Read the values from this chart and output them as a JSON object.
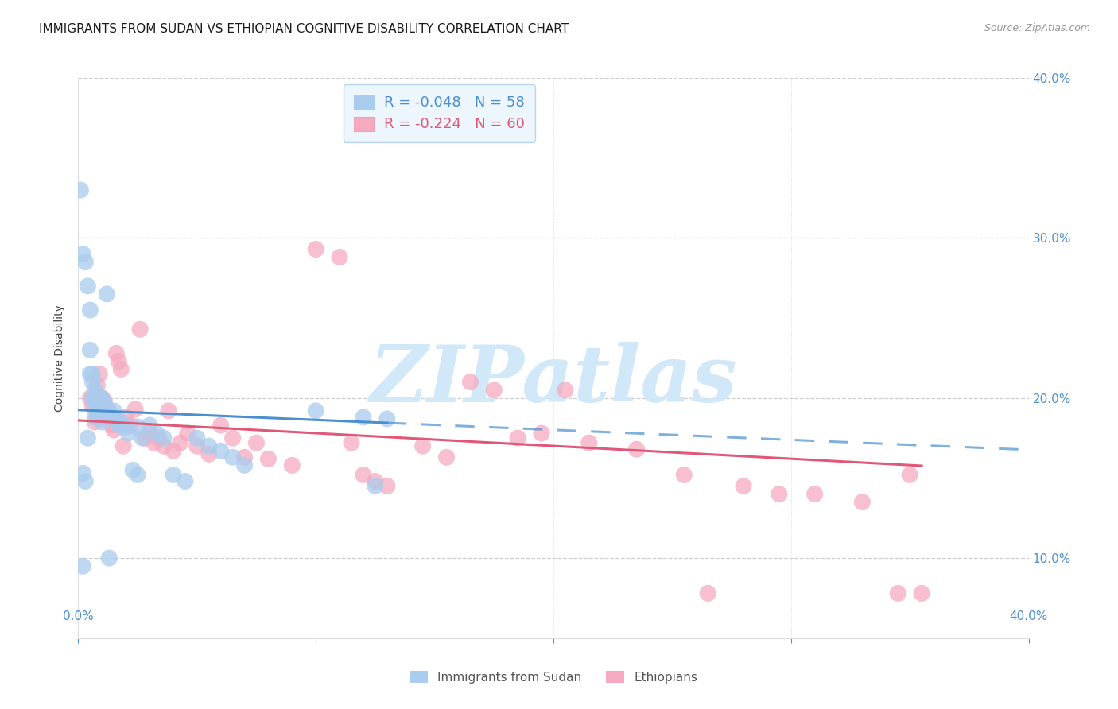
{
  "title": "IMMIGRANTS FROM SUDAN VS ETHIOPIAN COGNITIVE DISABILITY CORRELATION CHART",
  "source": "Source: ZipAtlas.com",
  "ylabel": "Cognitive Disability",
  "xlim": [
    0.0,
    0.4
  ],
  "ylim": [
    0.05,
    0.4
  ],
  "sudan_R": -0.048,
  "sudan_N": 58,
  "ethiopia_R": -0.224,
  "ethiopia_N": 60,
  "sudan_color": "#aaccee",
  "ethiopia_color": "#f5aabf",
  "sudan_line_color": "#4a8fd0",
  "ethiopia_line_color": "#e05878",
  "sudan_points_x": [
    0.001,
    0.002,
    0.002,
    0.003,
    0.003,
    0.004,
    0.004,
    0.005,
    0.005,
    0.005,
    0.006,
    0.006,
    0.006,
    0.007,
    0.007,
    0.007,
    0.007,
    0.008,
    0.008,
    0.008,
    0.009,
    0.009,
    0.009,
    0.01,
    0.01,
    0.01,
    0.011,
    0.011,
    0.012,
    0.012,
    0.013,
    0.014,
    0.015,
    0.016,
    0.017,
    0.018,
    0.02,
    0.021,
    0.023,
    0.025,
    0.027,
    0.03,
    0.033,
    0.036,
    0.04,
    0.045,
    0.05,
    0.055,
    0.06,
    0.065,
    0.07,
    0.1,
    0.12,
    0.125,
    0.13,
    0.002,
    0.013,
    0.025
  ],
  "sudan_points_y": [
    0.33,
    0.153,
    0.29,
    0.285,
    0.148,
    0.27,
    0.175,
    0.255,
    0.23,
    0.215,
    0.215,
    0.21,
    0.2,
    0.205,
    0.2,
    0.195,
    0.188,
    0.2,
    0.197,
    0.19,
    0.2,
    0.195,
    0.188,
    0.2,
    0.192,
    0.185,
    0.197,
    0.188,
    0.265,
    0.193,
    0.192,
    0.188,
    0.192,
    0.187,
    0.183,
    0.185,
    0.182,
    0.178,
    0.155,
    0.182,
    0.175,
    0.183,
    0.178,
    0.175,
    0.152,
    0.148,
    0.175,
    0.17,
    0.167,
    0.163,
    0.158,
    0.192,
    0.188,
    0.145,
    0.187,
    0.095,
    0.1,
    0.152
  ],
  "ethiopia_points_x": [
    0.005,
    0.006,
    0.007,
    0.008,
    0.009,
    0.01,
    0.011,
    0.012,
    0.013,
    0.014,
    0.015,
    0.016,
    0.017,
    0.018,
    0.019,
    0.02,
    0.022,
    0.024,
    0.026,
    0.028,
    0.03,
    0.032,
    0.034,
    0.036,
    0.038,
    0.04,
    0.043,
    0.046,
    0.05,
    0.055,
    0.06,
    0.065,
    0.07,
    0.075,
    0.08,
    0.09,
    0.1,
    0.11,
    0.115,
    0.12,
    0.125,
    0.13,
    0.145,
    0.155,
    0.165,
    0.175,
    0.185,
    0.195,
    0.205,
    0.215,
    0.235,
    0.255,
    0.265,
    0.28,
    0.295,
    0.31,
    0.33,
    0.345,
    0.355,
    0.35
  ],
  "ethiopia_points_y": [
    0.2,
    0.195,
    0.185,
    0.208,
    0.215,
    0.2,
    0.198,
    0.192,
    0.188,
    0.183,
    0.18,
    0.228,
    0.223,
    0.218,
    0.17,
    0.188,
    0.183,
    0.193,
    0.243,
    0.175,
    0.178,
    0.172,
    0.175,
    0.17,
    0.192,
    0.167,
    0.172,
    0.178,
    0.17,
    0.165,
    0.183,
    0.175,
    0.163,
    0.172,
    0.162,
    0.158,
    0.293,
    0.288,
    0.172,
    0.152,
    0.148,
    0.145,
    0.17,
    0.163,
    0.21,
    0.205,
    0.175,
    0.178,
    0.205,
    0.172,
    0.168,
    0.152,
    0.078,
    0.145,
    0.14,
    0.14,
    0.135,
    0.078,
    0.078,
    0.152
  ],
  "watermark": "ZIPatlas",
  "watermark_color": "#d0e8f8",
  "background_color": "#ffffff",
  "grid_color": "#c8c8c8",
  "title_fontsize": 11,
  "tick_color": "#4a8fd0",
  "legend_box_color": "#e8f4fc",
  "ytick_vals": [
    0.1,
    0.2,
    0.3,
    0.4
  ],
  "ytick_labels": [
    "10.0%",
    "20.0%",
    "30.0%",
    "40.0%"
  ],
  "xtick_vals": [
    0.0,
    0.1,
    0.2,
    0.3,
    0.4
  ],
  "xtick_labels": [
    "",
    "",
    "",
    "",
    ""
  ]
}
